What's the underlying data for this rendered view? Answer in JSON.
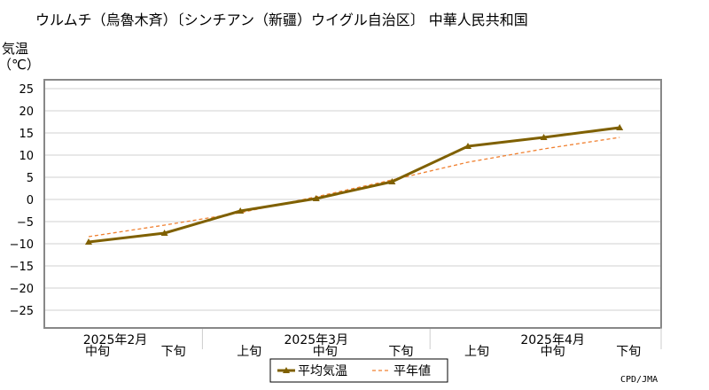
{
  "chart_data": {
    "type": "line",
    "title": "ウルムチ（烏魯木斉）〔シンチアン（新疆）ウイグル自治区〕 中華人民共和国",
    "ylabel_line1": "気温",
    "ylabel_line2": "（℃）",
    "ylim": [
      -30,
      30
    ],
    "yticks": [
      25,
      20,
      15,
      10,
      5,
      0,
      -5,
      -10,
      -15,
      -20,
      -25
    ],
    "grid": true,
    "categories": [
      "中旬",
      "下旬",
      "上旬",
      "中旬",
      "下旬",
      "上旬",
      "中旬",
      "下旬"
    ],
    "months": [
      {
        "label": "2025年2月",
        "start": 0,
        "end": 1
      },
      {
        "label": "2025年3月",
        "start": 2,
        "end": 4
      },
      {
        "label": "2025年4月",
        "start": 5,
        "end": 7
      }
    ],
    "series": [
      {
        "name": "平均気温",
        "color": "#7f6000",
        "style": "solid",
        "marker": "triangle",
        "values": [
          -9.6,
          -7.6,
          -2.6,
          0.2,
          4.0,
          12.0,
          14.0,
          16.2
        ]
      },
      {
        "name": "平年値",
        "color": "#f08030",
        "style": "dashed",
        "marker": "none",
        "values": [
          -8.4,
          -5.8,
          -3.0,
          0.6,
          4.4,
          8.4,
          11.4,
          14.0
        ]
      }
    ],
    "legend_position": "bottom-center",
    "credit": "CPD/JMA"
  }
}
